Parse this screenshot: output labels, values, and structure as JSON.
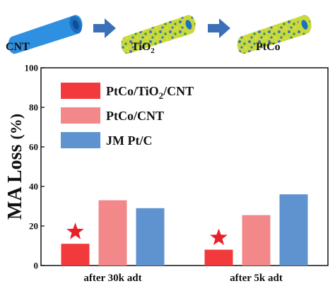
{
  "scheme": {
    "steps": [
      {
        "label": "CNT",
        "sub": ""
      },
      {
        "label": "TiO",
        "sub": "2"
      },
      {
        "label": "PtCo",
        "sub": ""
      }
    ],
    "colors": {
      "tube": "#2f8fe0",
      "tube_dark": "#1d6fbf",
      "coating": "#c9d93a",
      "particle": "#3f6fc9",
      "arrow": "#3b6fb8"
    }
  },
  "chart_data": {
    "type": "bar",
    "categories": [
      "after 30k adt",
      "after 5k adt"
    ],
    "series": [
      {
        "name": "PtCo/TiO₂/CNT",
        "name_main": "PtCo/TiO",
        "name_sub": "2",
        "name_rest": "/CNT",
        "color": "#f2393b",
        "values": [
          11,
          8
        ],
        "marker": "star"
      },
      {
        "name": "PtCo/CNT",
        "name_main": "PtCo/CNT",
        "name_sub": "",
        "name_rest": "",
        "color": "#f2888a",
        "values": [
          33,
          25.5
        ]
      },
      {
        "name": "JM Pt/C",
        "name_main": "JM Pt/C",
        "name_sub": "",
        "name_rest": "",
        "color": "#5f93d0",
        "values": [
          29,
          36
        ]
      }
    ],
    "ylabel": "MA Loss (%)",
    "ylabel_main": "MA Loss",
    "ylabel_unit": "(%)",
    "yticks": [
      0,
      20,
      40,
      60,
      80,
      100
    ],
    "ylim": [
      0,
      100
    ],
    "legend_position": "top-left",
    "star_color": "#e8202a",
    "grid": false
  }
}
